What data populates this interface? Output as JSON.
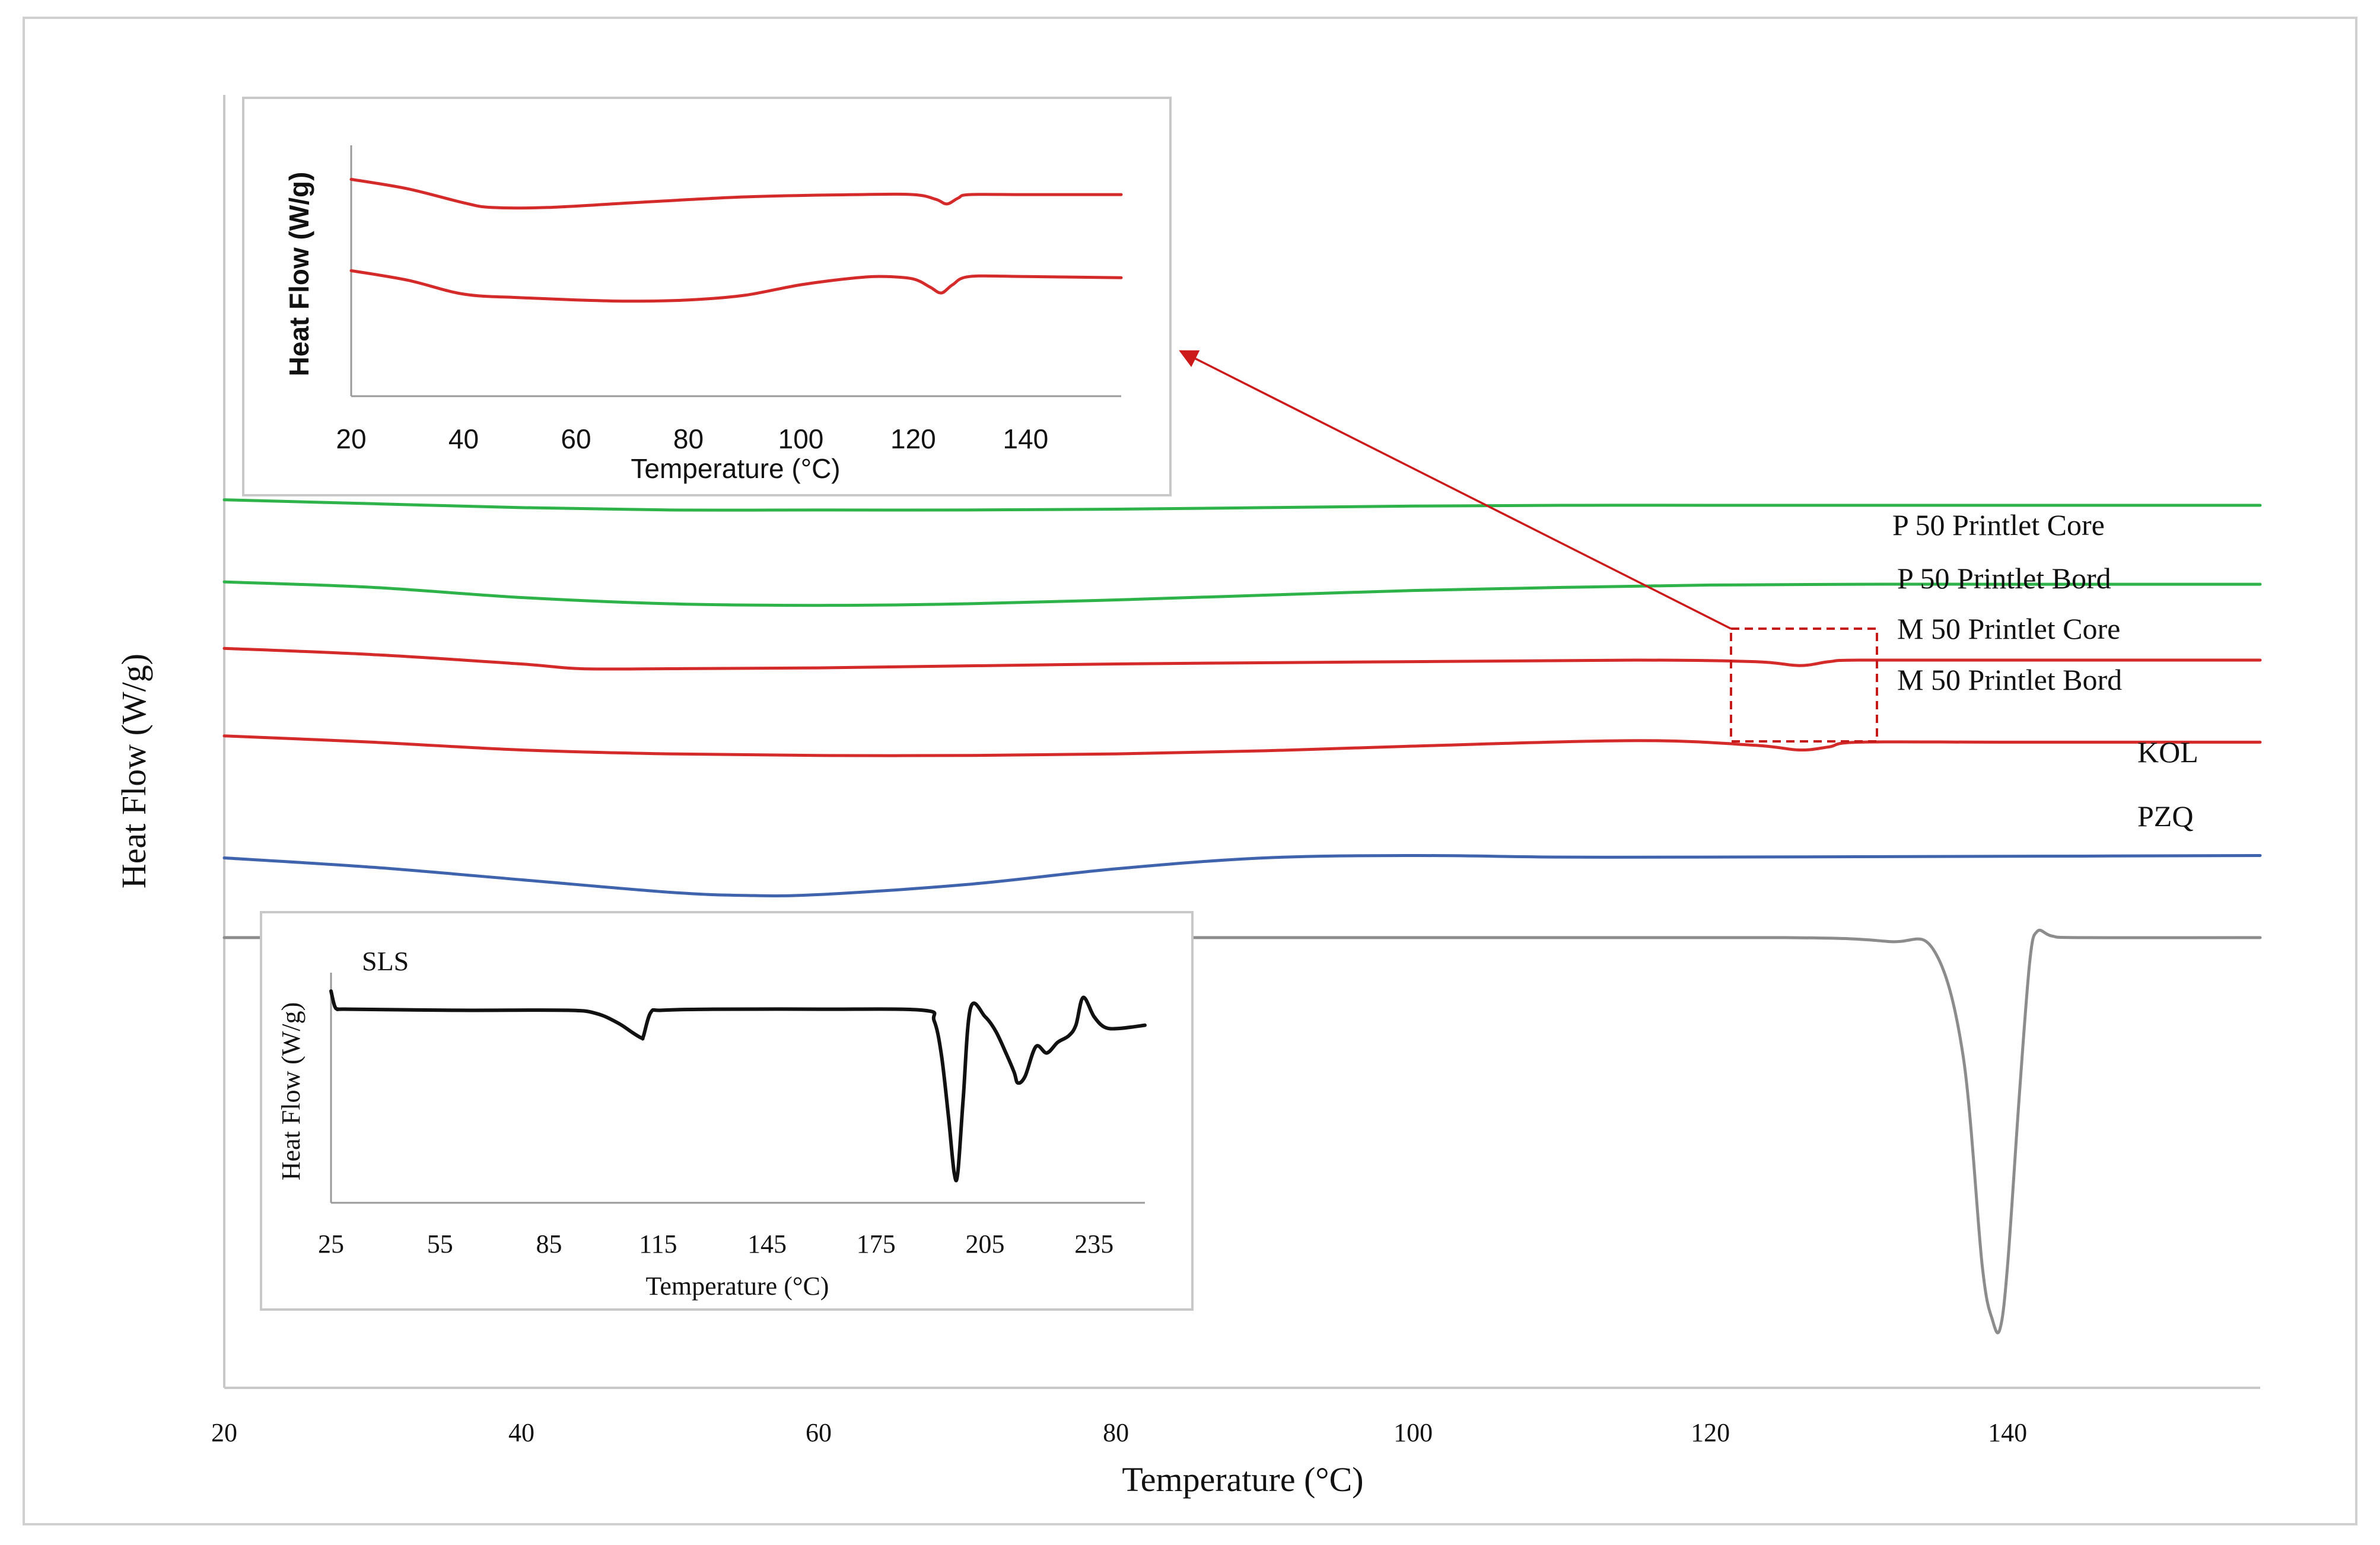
{
  "colors": {
    "green": "#2eb34a",
    "red": "#d42a2a",
    "blue": "#3f64ad",
    "gray": "#8c8c8c",
    "black": "#111111",
    "frame": "#cfcfcf"
  },
  "chart_data": [
    {
      "id": "main",
      "type": "line",
      "title": "",
      "xlabel": "Temperature (°C)",
      "ylabel": "Heat Flow (W/g)",
      "xlim": [
        20,
        157
      ],
      "ylim": [
        0,
        11
      ],
      "x_ticks": [
        "20",
        "40",
        "60",
        "80",
        "100",
        "120",
        "140"
      ],
      "y_ticks_shown": false,
      "series": [
        {
          "name": "P 50 Printlet Core",
          "color_key": "green",
          "x": [
            20,
            30,
            40,
            50,
            60,
            70,
            80,
            90,
            100,
            110,
            120,
            130,
            140,
            157
          ],
          "y": [
            10.6,
            10.55,
            10.5,
            10.47,
            10.47,
            10.47,
            10.48,
            10.5,
            10.52,
            10.53,
            10.53,
            10.53,
            10.53,
            10.53
          ]
        },
        {
          "name": "P 50 Printlet Bord",
          "color_key": "green",
          "x": [
            20,
            30,
            40,
            50,
            60,
            70,
            80,
            90,
            100,
            110,
            120,
            130,
            140,
            157
          ],
          "y": [
            9.55,
            9.48,
            9.35,
            9.27,
            9.25,
            9.27,
            9.32,
            9.38,
            9.44,
            9.48,
            9.51,
            9.52,
            9.52,
            9.52
          ]
        },
        {
          "name": "M 50 Printlet Core",
          "color_key": "red",
          "x": [
            20,
            30,
            40,
            44,
            50,
            60,
            80,
            100,
            115,
            123,
            126,
            128,
            130,
            140,
            157
          ],
          "y": [
            8.7,
            8.62,
            8.5,
            8.44,
            8.44,
            8.45,
            8.5,
            8.53,
            8.55,
            8.53,
            8.48,
            8.53,
            8.55,
            8.55,
            8.55
          ]
        },
        {
          "name": "M 50 Printlet Bord",
          "color_key": "red",
          "x": [
            20,
            30,
            40,
            50,
            60,
            70,
            80,
            90,
            100,
            115,
            123,
            126,
            128,
            130,
            140,
            157
          ],
          "y": [
            7.58,
            7.5,
            7.4,
            7.35,
            7.33,
            7.33,
            7.35,
            7.39,
            7.45,
            7.52,
            7.46,
            7.4,
            7.44,
            7.5,
            7.5,
            7.5
          ]
        },
        {
          "name": "KOL",
          "color_key": "blue",
          "x": [
            20,
            30,
            40,
            50,
            55,
            60,
            70,
            80,
            90,
            100,
            110,
            120,
            140,
            157
          ],
          "y": [
            6.02,
            5.9,
            5.74,
            5.58,
            5.54,
            5.55,
            5.68,
            5.88,
            6.02,
            6.05,
            6.03,
            6.03,
            6.04,
            6.05
          ]
        },
        {
          "name": "PZQ",
          "color_key": "gray",
          "x": [
            20,
            60,
            100,
            125,
            132,
            135,
            137,
            138.3,
            139,
            139.5,
            140,
            140.8,
            141.5,
            142,
            143,
            145,
            157
          ],
          "y": [
            5.0,
            5.0,
            5.0,
            5.0,
            4.95,
            4.85,
            3.5,
            0.8,
            0.1,
            0.0,
            0.8,
            3.0,
            4.7,
            5.08,
            5.02,
            5.0,
            5.0
          ]
        }
      ],
      "labels": [
        "P 50 Printlet Core",
        "P 50 Printlet Bord",
        "M 50 Printlet Core",
        "M 50 Printlet Bord",
        "KOL",
        "PZQ"
      ],
      "annotations": [
        {
          "type": "dashed-box",
          "x_range": [
            121.5,
            131.3
          ],
          "y_range": [
            7.1,
            9.0
          ]
        },
        {
          "type": "arrow",
          "from": "dashed-box top-left",
          "to": "inset top-right"
        }
      ]
    },
    {
      "id": "inset_top",
      "type": "line",
      "title": "",
      "xlabel": "Temperature (°C)",
      "ylabel": "Heat Flow (W/g)",
      "xlim": [
        20,
        157
      ],
      "ylim": [
        0,
        10
      ],
      "x_ticks": [
        "20",
        "40",
        "60",
        "80",
        "100",
        "120",
        "140"
      ],
      "y_ticks_shown": false,
      "series": [
        {
          "name": "M 50 Printlet Core",
          "color_key": "red",
          "x": [
            20,
            30,
            40,
            45,
            55,
            70,
            90,
            110,
            120,
            124,
            126,
            128,
            130,
            140,
            157
          ],
          "y": [
            8.8,
            8.4,
            7.8,
            7.6,
            7.6,
            7.8,
            8.05,
            8.15,
            8.15,
            7.95,
            7.75,
            8.0,
            8.15,
            8.15,
            8.15
          ]
        },
        {
          "name": "M 50 Printlet Bord",
          "color_key": "red",
          "x": [
            20,
            30,
            40,
            50,
            60,
            70,
            80,
            90,
            100,
            110,
            115,
            120,
            123,
            125,
            127,
            130,
            140,
            157
          ],
          "y": [
            4.9,
            4.5,
            3.9,
            3.75,
            3.65,
            3.6,
            3.65,
            3.85,
            4.3,
            4.6,
            4.65,
            4.55,
            4.2,
            3.95,
            4.3,
            4.65,
            4.65,
            4.6
          ]
        }
      ]
    },
    {
      "id": "inset_bottom",
      "type": "line",
      "title": "SLS",
      "xlabel": "Temperature (°C)",
      "ylabel": "Heat Flow (W/g)",
      "xlim": [
        25,
        249
      ],
      "ylim": [
        0,
        10
      ],
      "x_ticks": [
        "25",
        "55",
        "85",
        "115",
        "145",
        "175",
        "205",
        "235"
      ],
      "y_ticks_shown": false,
      "series": [
        {
          "name": "SLS",
          "color_key": "black",
          "x": [
            25,
            26,
            27,
            30,
            60,
            90,
            98,
            104,
            108,
            110.5,
            111,
            113,
            116,
            130,
            160,
            188,
            191,
            193,
            195,
            196.5,
            197.5,
            199,
            201,
            205,
            208,
            211,
            213,
            214,
            216,
            219,
            222,
            225,
            228,
            230,
            232,
            235,
            238,
            242,
            249
          ],
          "y": [
            9.0,
            8.3,
            8.15,
            8.15,
            8.1,
            8.1,
            7.95,
            7.5,
            7.05,
            6.8,
            6.9,
            8.0,
            8.1,
            8.15,
            8.15,
            8.1,
            7.6,
            6.0,
            3.0,
            0.5,
            0.5,
            4.0,
            8.2,
            7.8,
            7.1,
            6.0,
            5.2,
            4.7,
            5.0,
            6.4,
            6.1,
            6.6,
            6.9,
            7.4,
            8.7,
            7.8,
            7.3,
            7.25,
            7.4
          ]
        }
      ]
    }
  ]
}
